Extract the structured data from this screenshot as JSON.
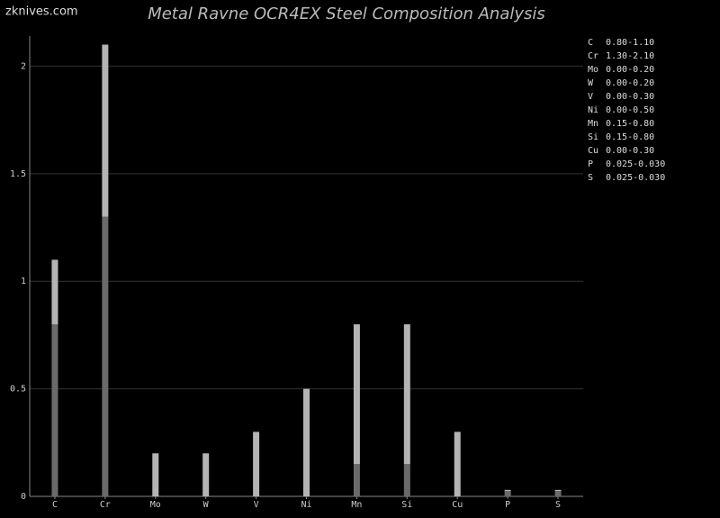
{
  "chart_data": {
    "type": "range_bar",
    "title": "Metal Ravne OCR4EX Steel Composition Analysis",
    "watermark": "zknives.com",
    "categories": [
      "C",
      "Cr",
      "Mo",
      "W",
      "V",
      "Ni",
      "Mn",
      "Si",
      "Cu",
      "P",
      "S"
    ],
    "low": [
      0.8,
      1.3,
      0,
      0,
      0,
      0,
      0.15,
      0.15,
      0,
      0.025,
      0.025
    ],
    "high": [
      1.1,
      2.1,
      0.2,
      0.2,
      0.3,
      0.5,
      0.8,
      0.8,
      0.3,
      0.03,
      0.03
    ],
    "range_labels": [
      "0.80-1.10",
      "1.30-2.10",
      "0.00-0.20",
      "0.00-0.20",
      "0.00-0.30",
      "0.00-0.50",
      "0.15-0.80",
      "0.15-0.80",
      "0.00-0.30",
      "0.025-0.030",
      "0.025-0.030"
    ],
    "low_color": "#6a6a6a",
    "high_color": "#b4b4b4",
    "ylim": [
      0,
      2.14
    ],
    "yticks": [
      0,
      0.5,
      1,
      1.5,
      2
    ],
    "grid": true
  }
}
